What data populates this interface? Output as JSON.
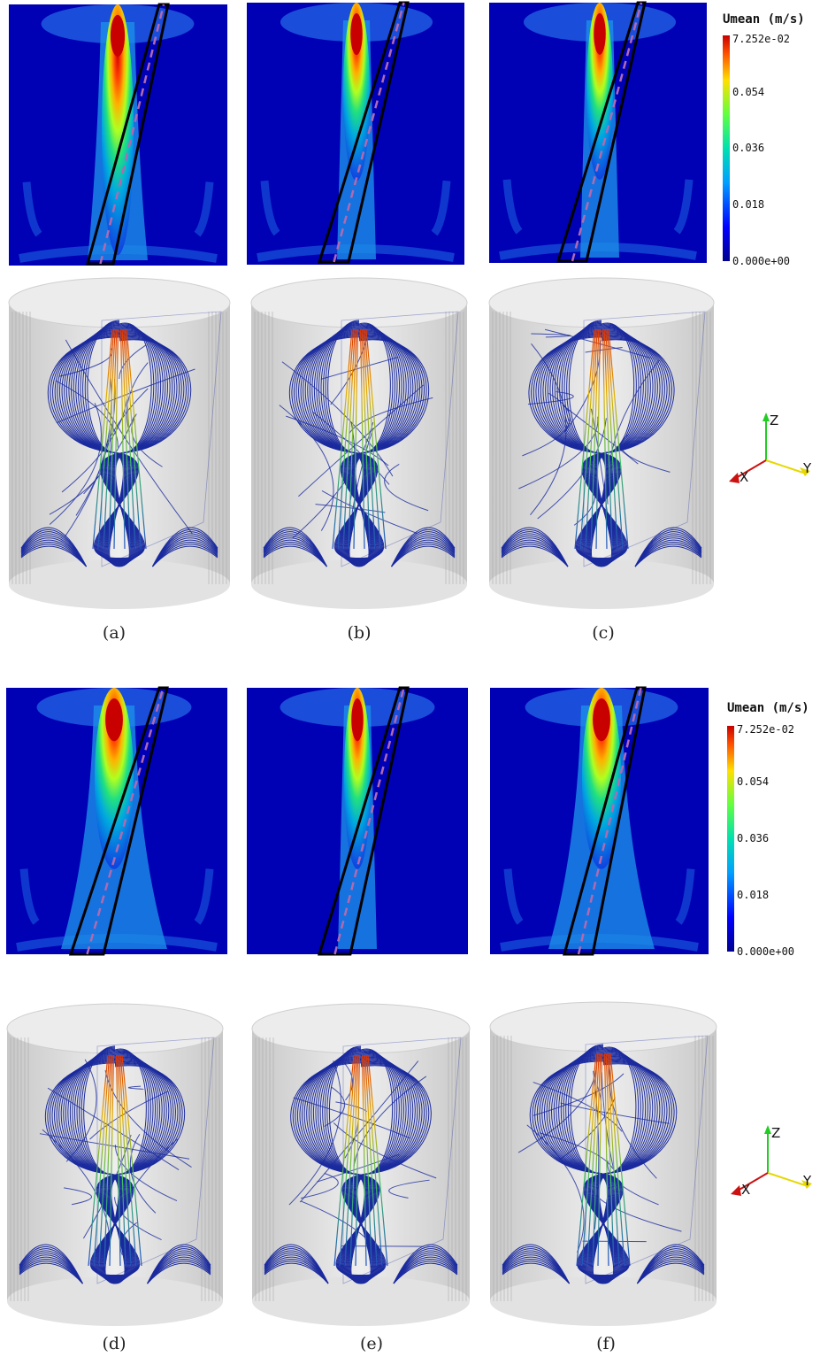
{
  "figure": {
    "panels": [
      {
        "id": "a",
        "caption": "(a)"
      },
      {
        "id": "b",
        "caption": "(b)"
      },
      {
        "id": "c",
        "caption": "(c)"
      },
      {
        "id": "d",
        "caption": "(d)"
      },
      {
        "id": "e",
        "caption": "(e)"
      },
      {
        "id": "f",
        "caption": "(f)"
      }
    ],
    "colorbar": {
      "title": "Umean (m/s)",
      "max_label": "7.252e-02",
      "ticks": [
        "0.054",
        "0.036",
        "0.018"
      ],
      "min_label": "0.000e+00"
    },
    "axes": {
      "z": "Z",
      "y": "Y",
      "x": "X"
    },
    "colors": {
      "background": "#0000b4",
      "jet_low": "#00008f",
      "jet_high": "#b40000",
      "streamline": "#1a2a9e",
      "cylinder": "#d8d8d8",
      "x_axis": "#cc1111",
      "y_axis": "#e6d800",
      "z_axis": "#22cc22"
    }
  }
}
